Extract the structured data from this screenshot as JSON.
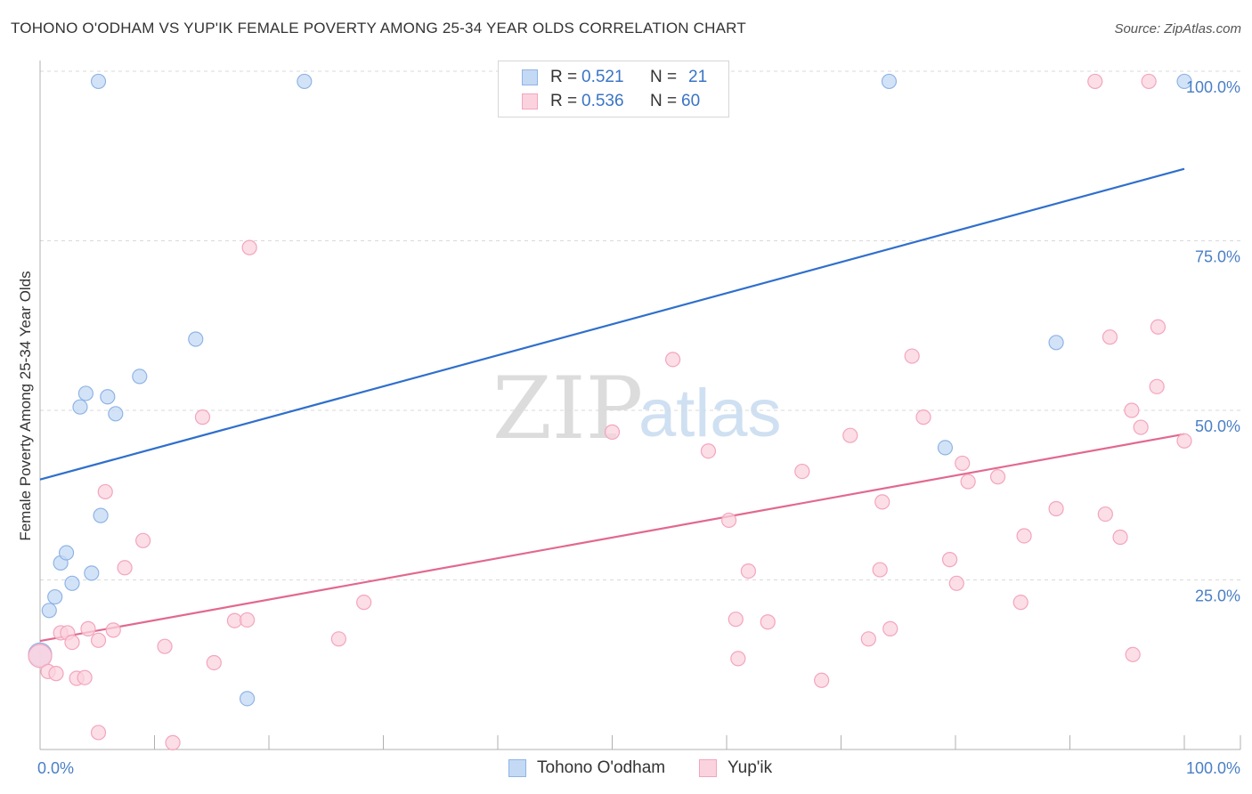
{
  "title": "TOHONO O'ODHAM VS YUP'IK FEMALE POVERTY AMONG 25-34 YEAR OLDS CORRELATION CHART",
  "source": "Source: ZipAtlas.com",
  "watermark": {
    "zip": "ZIP",
    "atlas": "atlas"
  },
  "legend": {
    "rows": [
      {
        "r_label": "R =",
        "r_value": "0.521",
        "n_label": "N =",
        "n_value": "21",
        "color": "#a9c8f0"
      },
      {
        "r_label": "R =",
        "r_value": "0.536",
        "n_label": "N =",
        "n_value": "60",
        "color": "#f7b8cb"
      }
    ]
  },
  "bottom_legend": {
    "series1": "Tohono O'odham",
    "series2": "Yup'ik"
  },
  "colors": {
    "blue_fill": "#c4d9f4",
    "blue_stroke": "#8fb4e6",
    "blue_line": "#2f6fcc",
    "pink_fill": "#fbd3df",
    "pink_stroke": "#f3a5bd",
    "pink_line": "#e2688f",
    "grid": "#d9d9d9",
    "axis_label": "#4a7fc6"
  },
  "chart_data": {
    "type": "scatter",
    "title": "TOHONO O'ODHAM VS YUP'IK FEMALE POVERTY AMONG 25-34 YEAR OLDS CORRELATION CHART",
    "xlabel": "",
    "ylabel": "Female Poverty Among 25-34 Year Olds",
    "xlim": [
      0,
      100
    ],
    "ylim": [
      0,
      100
    ],
    "x_tick_labels": [
      "0.0%",
      "100.0%"
    ],
    "y_tick_labels": [
      {
        "value": 25,
        "label": "25.0%"
      },
      {
        "value": 50,
        "label": "50.0%"
      },
      {
        "value": 75,
        "label": "75.0%"
      },
      {
        "value": 100,
        "label": "100.0%"
      }
    ],
    "series": [
      {
        "name": "Tohono O'odham",
        "R": 0.521,
        "N": 21,
        "trend": {
          "x": [
            0,
            100
          ],
          "y": [
            39.8,
            85.6
          ]
        },
        "points": [
          {
            "x": 0.0,
            "y": 14.0,
            "big": true
          },
          {
            "x": 0.8,
            "y": 20.5
          },
          {
            "x": 1.3,
            "y": 22.5
          },
          {
            "x": 1.8,
            "y": 27.5
          },
          {
            "x": 2.3,
            "y": 29.0
          },
          {
            "x": 2.8,
            "y": 24.5
          },
          {
            "x": 3.5,
            "y": 50.5
          },
          {
            "x": 4.0,
            "y": 52.5
          },
          {
            "x": 4.5,
            "y": 26.0
          },
          {
            "x": 5.3,
            "y": 34.5
          },
          {
            "x": 5.9,
            "y": 52.0
          },
          {
            "x": 6.6,
            "y": 49.5
          },
          {
            "x": 8.7,
            "y": 55.0
          },
          {
            "x": 13.6,
            "y": 60.5
          },
          {
            "x": 18.1,
            "y": 7.5
          },
          {
            "x": 5.1,
            "y": 98.5
          },
          {
            "x": 23.1,
            "y": 98.5
          },
          {
            "x": 74.2,
            "y": 98.5
          },
          {
            "x": 100.0,
            "y": 98.5
          },
          {
            "x": 79.1,
            "y": 44.5
          },
          {
            "x": 88.8,
            "y": 60.0
          }
        ]
      },
      {
        "name": "Yup'ik",
        "R": 0.536,
        "N": 60,
        "trend": {
          "x": [
            0,
            100
          ],
          "y": [
            16.0,
            46.5
          ]
        },
        "points": [
          {
            "x": 0.0,
            "y": 13.8,
            "big": true
          },
          {
            "x": 0.7,
            "y": 11.5
          },
          {
            "x": 1.4,
            "y": 11.2
          },
          {
            "x": 1.8,
            "y": 17.2
          },
          {
            "x": 2.4,
            "y": 17.2
          },
          {
            "x": 2.8,
            "y": 15.8
          },
          {
            "x": 3.2,
            "y": 10.5
          },
          {
            "x": 3.9,
            "y": 10.6
          },
          {
            "x": 4.2,
            "y": 17.8
          },
          {
            "x": 5.1,
            "y": 16.1
          },
          {
            "x": 5.1,
            "y": 2.5
          },
          {
            "x": 5.7,
            "y": 38.0
          },
          {
            "x": 6.4,
            "y": 17.6
          },
          {
            "x": 7.4,
            "y": 26.8
          },
          {
            "x": 9.0,
            "y": 30.8
          },
          {
            "x": 10.9,
            "y": 15.2
          },
          {
            "x": 11.6,
            "y": 1.0
          },
          {
            "x": 14.2,
            "y": 49.0
          },
          {
            "x": 15.2,
            "y": 12.8
          },
          {
            "x": 17.0,
            "y": 19.0
          },
          {
            "x": 18.1,
            "y": 19.1
          },
          {
            "x": 18.3,
            "y": 74.0
          },
          {
            "x": 26.1,
            "y": 16.3
          },
          {
            "x": 28.3,
            "y": 21.7
          },
          {
            "x": 50.0,
            "y": 46.8
          },
          {
            "x": 55.3,
            "y": 57.5
          },
          {
            "x": 58.4,
            "y": 44.0
          },
          {
            "x": 60.2,
            "y": 33.8
          },
          {
            "x": 60.8,
            "y": 19.2
          },
          {
            "x": 61.0,
            "y": 13.4
          },
          {
            "x": 61.9,
            "y": 26.3
          },
          {
            "x": 63.6,
            "y": 18.8
          },
          {
            "x": 66.6,
            "y": 41.0
          },
          {
            "x": 68.3,
            "y": 10.2
          },
          {
            "x": 70.8,
            "y": 46.3
          },
          {
            "x": 72.4,
            "y": 16.3
          },
          {
            "x": 73.4,
            "y": 26.5
          },
          {
            "x": 73.6,
            "y": 36.5
          },
          {
            "x": 74.3,
            "y": 17.8
          },
          {
            "x": 76.2,
            "y": 58.0
          },
          {
            "x": 77.2,
            "y": 49.0
          },
          {
            "x": 79.5,
            "y": 28.0
          },
          {
            "x": 80.1,
            "y": 24.5
          },
          {
            "x": 80.6,
            "y": 42.2
          },
          {
            "x": 81.1,
            "y": 39.5
          },
          {
            "x": 83.7,
            "y": 40.2
          },
          {
            "x": 85.7,
            "y": 21.7
          },
          {
            "x": 86.0,
            "y": 31.5
          },
          {
            "x": 88.8,
            "y": 35.5
          },
          {
            "x": 92.2,
            "y": 98.5
          },
          {
            "x": 93.1,
            "y": 34.7
          },
          {
            "x": 93.5,
            "y": 60.8
          },
          {
            "x": 94.4,
            "y": 31.3
          },
          {
            "x": 95.4,
            "y": 50.0
          },
          {
            "x": 95.5,
            "y": 14.0
          },
          {
            "x": 96.2,
            "y": 47.5
          },
          {
            "x": 96.9,
            "y": 98.5
          },
          {
            "x": 97.6,
            "y": 53.5
          },
          {
            "x": 97.7,
            "y": 62.3
          },
          {
            "x": 100.0,
            "y": 45.5
          }
        ]
      }
    ]
  }
}
